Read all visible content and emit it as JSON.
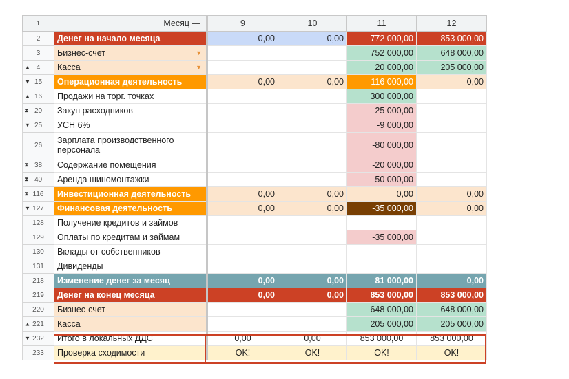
{
  "header": {
    "rownum": "1",
    "label": "Месяц —",
    "months": [
      "9",
      "10",
      "11",
      "12"
    ]
  },
  "rows": [
    {
      "rownum": "2",
      "label": "Денег на начало месяца",
      "vals": [
        "0,00",
        "0,00",
        "772 000,00",
        "853 000,00"
      ]
    },
    {
      "rownum": "3",
      "label": "Бизнес-счет",
      "vals": [
        "",
        "",
        "752 000,00",
        "648 000,00"
      ]
    },
    {
      "rownum": "4",
      "label": "Касса",
      "vals": [
        "",
        "",
        "20 000,00",
        "205 000,00"
      ]
    },
    {
      "rownum": "15",
      "label": "Операционная деятельность",
      "vals": [
        "0,00",
        "0,00",
        "116 000,00",
        "0,00"
      ]
    },
    {
      "rownum": "16",
      "label": "Продажи на торг. точках",
      "vals": [
        "",
        "",
        "300 000,00",
        ""
      ]
    },
    {
      "rownum": "20",
      "label": "Закуп расходников",
      "vals": [
        "",
        "",
        "-25 000,00",
        ""
      ]
    },
    {
      "rownum": "25",
      "label": "УСН 6%",
      "vals": [
        "",
        "",
        "-9 000,00",
        ""
      ]
    },
    {
      "rownum": "26",
      "label": "Зарплата производственного персонала",
      "vals": [
        "",
        "",
        "-80 000,00",
        ""
      ]
    },
    {
      "rownum": "38",
      "label": "Содержание помещения",
      "vals": [
        "",
        "",
        "-20 000,00",
        ""
      ]
    },
    {
      "rownum": "40",
      "label": "Аренда шиномонтажки",
      "vals": [
        "",
        "",
        "-50 000,00",
        ""
      ]
    },
    {
      "rownum": "116",
      "label": "Инвестиционная деятельность",
      "vals": [
        "0,00",
        "0,00",
        "0,00",
        "0,00"
      ]
    },
    {
      "rownum": "127",
      "label": "Финансовая деятельность",
      "vals": [
        "0,00",
        "0,00",
        "-35 000,00",
        "0,00"
      ]
    },
    {
      "rownum": "128",
      "label": "Получение кредитов и займов",
      "vals": [
        "",
        "",
        "",
        ""
      ]
    },
    {
      "rownum": "129",
      "label": "Оплаты по кредитам и займам",
      "vals": [
        "",
        "",
        "-35 000,00",
        ""
      ]
    },
    {
      "rownum": "130",
      "label": "Вклады от собственников",
      "vals": [
        "",
        "",
        "",
        ""
      ]
    },
    {
      "rownum": "131",
      "label": "Дивиденды",
      "vals": [
        "",
        "",
        "",
        ""
      ]
    },
    {
      "rownum": "218",
      "label": "Изменение денег за месяц",
      "vals": [
        "0,00",
        "0,00",
        "81 000,00",
        "0,00"
      ]
    },
    {
      "rownum": "219",
      "label": "Денег на конец месяца",
      "vals": [
        "0,00",
        "0,00",
        "853 000,00",
        "853 000,00"
      ]
    },
    {
      "rownum": "220",
      "label": "Бизнес-счет",
      "vals": [
        "",
        "",
        "648 000,00",
        "648 000,00"
      ]
    },
    {
      "rownum": "221",
      "label": "Касса",
      "vals": [
        "",
        "",
        "205 000,00",
        "205 000,00"
      ]
    },
    {
      "rownum": "232",
      "label": "Итого в локальных ДДС",
      "vals": [
        "0,00",
        "0,00",
        "853 000,00",
        "853 000,00"
      ]
    },
    {
      "rownum": "233",
      "label": "Проверка сходимости",
      "vals": [
        "OK!",
        "OK!",
        "OK!",
        "OK!"
      ]
    }
  ],
  "icons": {
    "expand": "▲",
    "collapse": "▼",
    "both": "⧗",
    "dropdown": "▼"
  },
  "colors": {
    "red": "#cc4125",
    "orange": "#ff9900",
    "peach": "#fce5cd",
    "green": "#b6e1cd",
    "pink": "#f4cccc",
    "teal": "#76a5af",
    "brown": "#783f04"
  }
}
